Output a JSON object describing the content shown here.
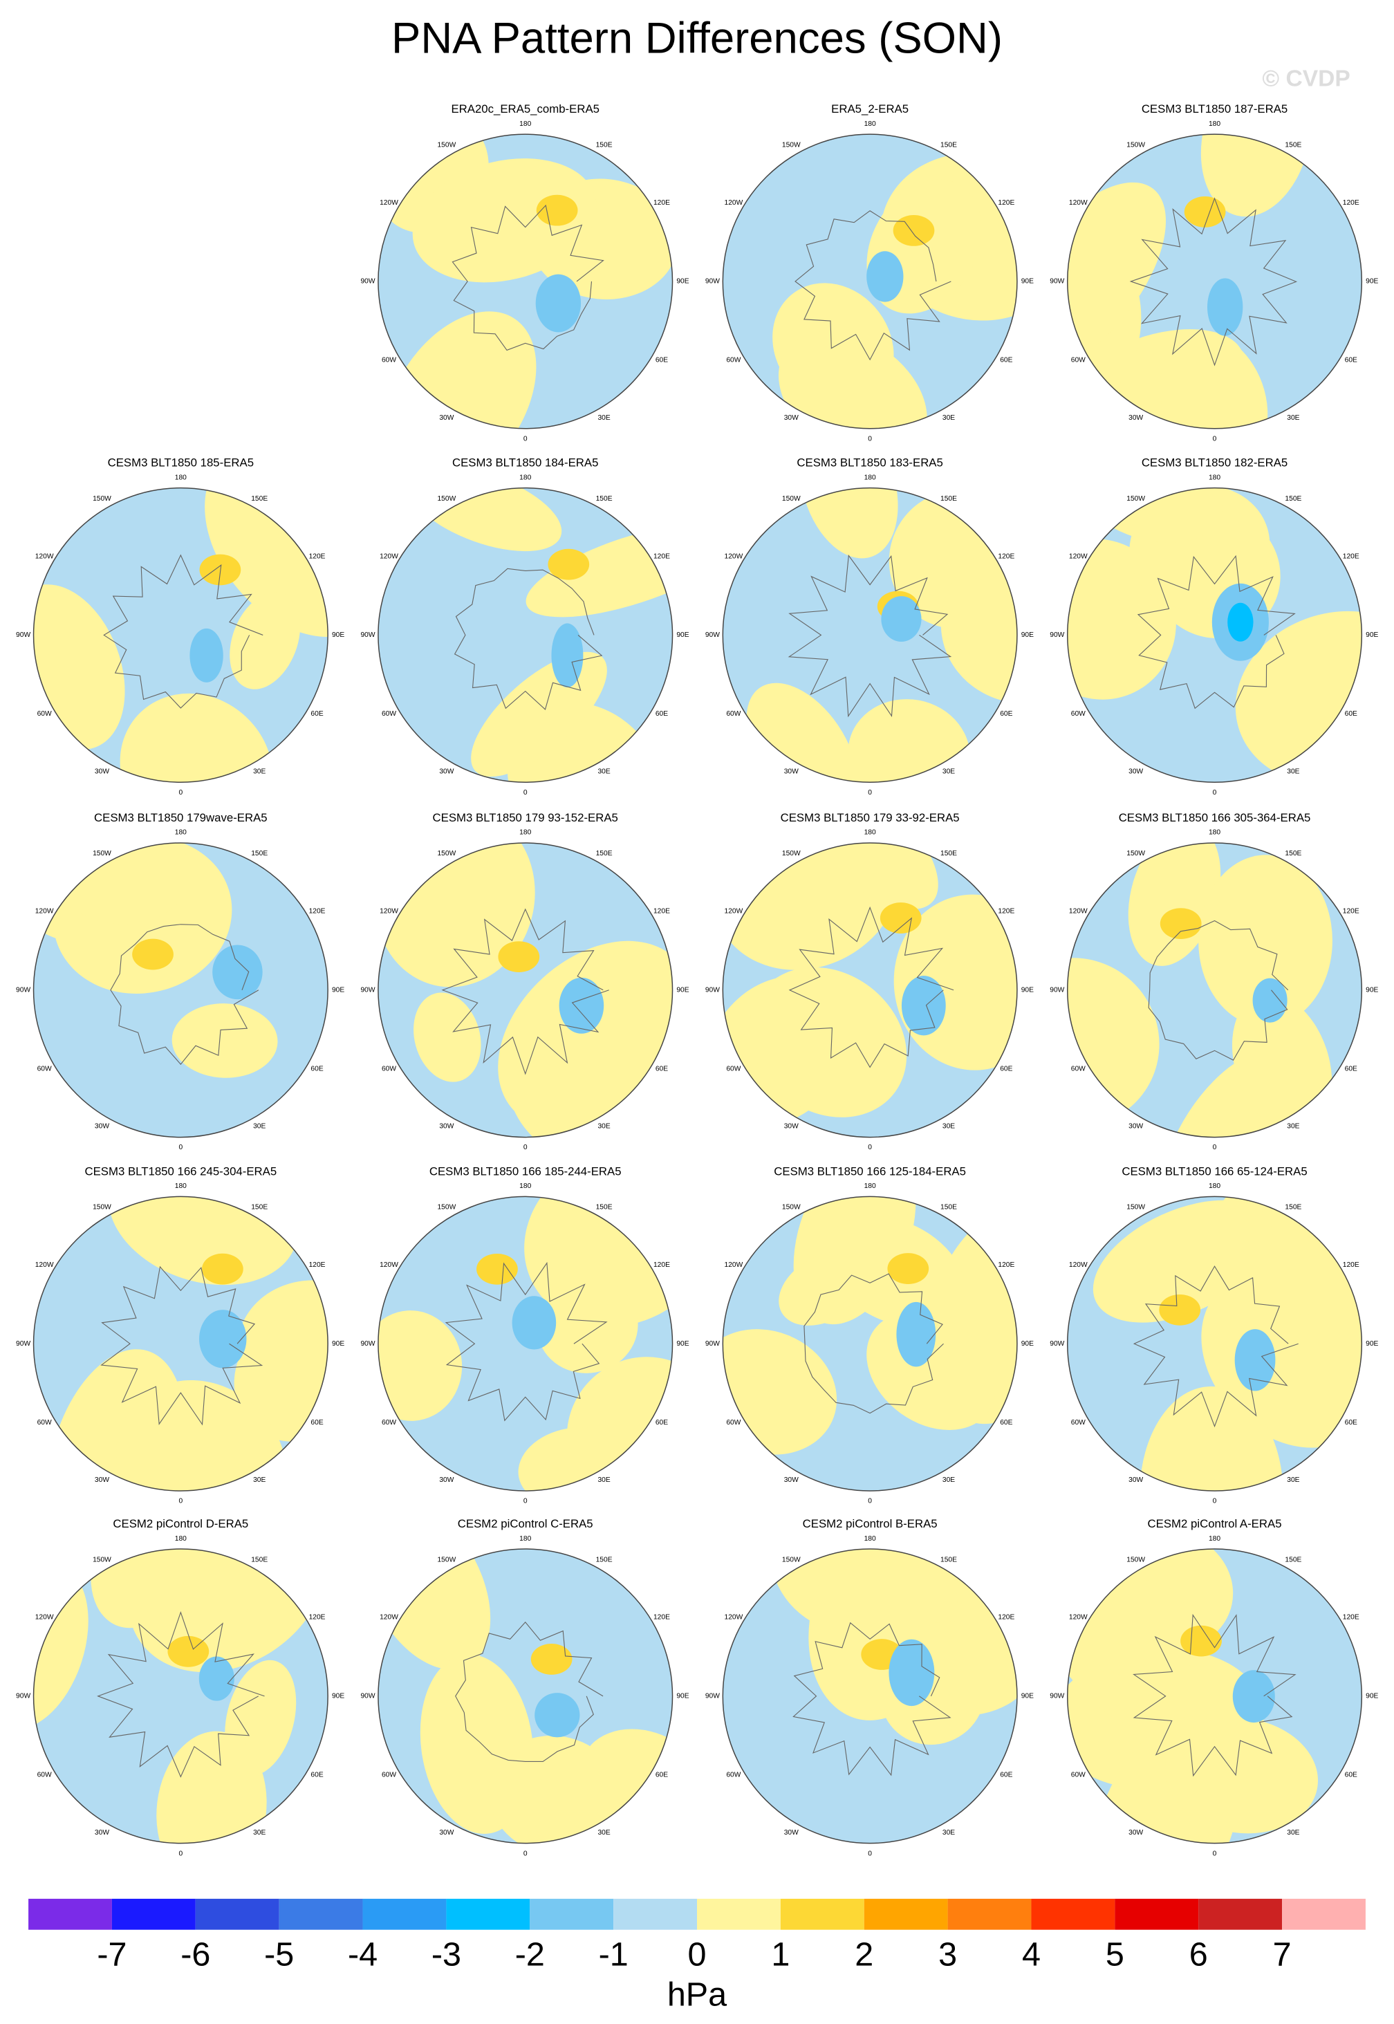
{
  "header": {
    "title": "PNA Pattern Differences (SON)",
    "watermark": "© CVDP"
  },
  "lon_labels": [
    "180",
    "150E",
    "120E",
    "90E",
    "60E",
    "30E",
    "0",
    "30W",
    "60W",
    "90W",
    "120W",
    "150W"
  ],
  "panels": [
    {
      "title": "ERA20c_ERA5_comb-ERA5"
    },
    {
      "title": "ERA5_2-ERA5"
    },
    {
      "title": "CESM3 BLT1850 187-ERA5"
    },
    {
      "title": "CESM3 BLT1850 185-ERA5"
    },
    {
      "title": "CESM3 BLT1850 184-ERA5"
    },
    {
      "title": "CESM3 BLT1850 183-ERA5"
    },
    {
      "title": "CESM3 BLT1850 182-ERA5"
    },
    {
      "title": "CESM3 BLT1850 179wave-ERA5"
    },
    {
      "title": "CESM3 BLT1850 179 93-152-ERA5"
    },
    {
      "title": "CESM3 BLT1850 179 33-92-ERA5"
    },
    {
      "title": "CESM3 BLT1850 166 305-364-ERA5"
    },
    {
      "title": "CESM3 BLT1850 166 245-304-ERA5"
    },
    {
      "title": "CESM3 BLT1850 166 185-244-ERA5"
    },
    {
      "title": "CESM3 BLT1850 166 125-184-ERA5"
    },
    {
      "title": "CESM3 BLT1850 166 65-124-ERA5"
    },
    {
      "title": "CESM2 piControl D-ERA5"
    },
    {
      "title": "CESM2 piControl C-ERA5"
    },
    {
      "title": "CESM2 piControl B-ERA5"
    },
    {
      "title": "CESM2 piControl A-ERA5"
    }
  ],
  "colorbar": {
    "colors": [
      "#7b2be8",
      "#1a1aff",
      "#2e4de0",
      "#3b7be6",
      "#2a9bf5",
      "#00bfff",
      "#77c8f2",
      "#b3dcf2",
      "#fff59d",
      "#fdd835",
      "#ffa500",
      "#ff7f0e",
      "#ff3300",
      "#e60000",
      "#cc2222",
      "#ffb0b0"
    ],
    "ticks": [
      -7,
      -6,
      -5,
      -4,
      -3,
      -2,
      -1,
      0,
      1,
      2,
      3,
      4,
      5,
      6,
      7
    ],
    "label": "hPa"
  }
}
